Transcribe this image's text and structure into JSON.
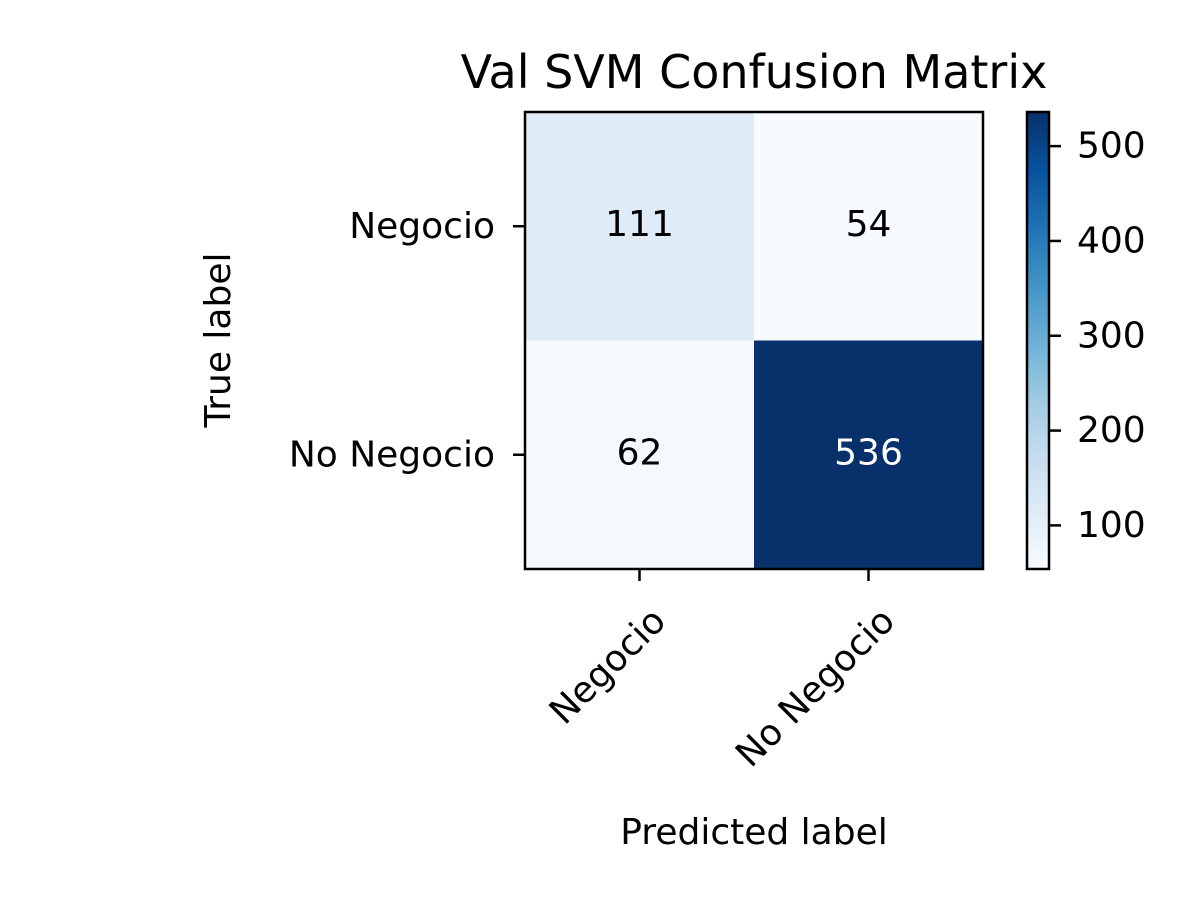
{
  "chart_data": {
    "type": "heatmap",
    "title": "Val SVM Confusion Matrix",
    "xlabel": "Predicted label",
    "ylabel": "True label",
    "x_categories": [
      "Negocio",
      "No Negocio"
    ],
    "y_categories": [
      "Negocio",
      "No Negocio"
    ],
    "values": [
      [
        111,
        54
      ],
      [
        62,
        536
      ]
    ],
    "colormap": "Blues",
    "colormap_stops": [
      "#f7fbff",
      "#deebf7",
      "#c6dbef",
      "#9ecae1",
      "#6baed6",
      "#4292c6",
      "#2171b5",
      "#08519c",
      "#08306b"
    ],
    "text_color_dark": "#000000",
    "text_color_light": "#ffffff",
    "colorbar": {
      "ticks": [
        100,
        200,
        300,
        400,
        500
      ],
      "tick_labels": [
        "100",
        "200",
        "300",
        "400",
        "500"
      ]
    },
    "grid": false
  }
}
